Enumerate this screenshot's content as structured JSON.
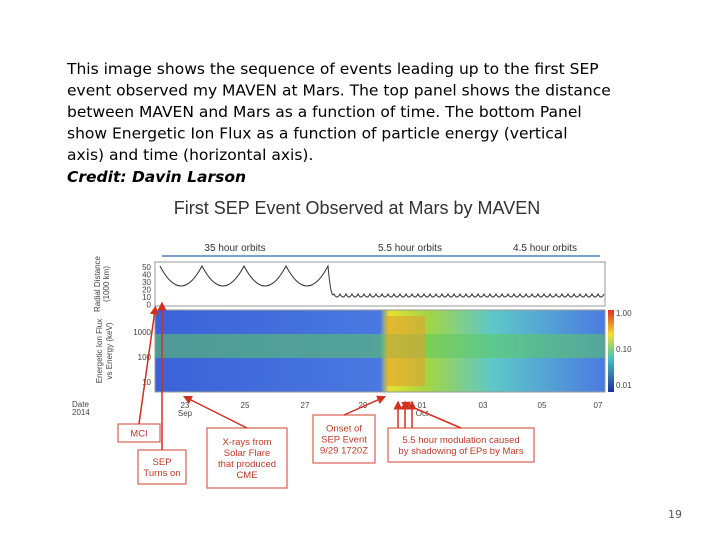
{
  "body": {
    "lines": [
      "This image shows the sequence of events leading up to the first SEP",
      "event observed my MAVEN at Mars. The top panel shows the distance",
      "between MAVEN and Mars as a function of time.  The bottom Panel",
      "show Energetic Ion Flux as a function of particle energy (vertical",
      "axis) and time (horizontal axis)."
    ],
    "credit": "Credit: Davin Larson"
  },
  "figure": {
    "title": "First SEP Event Observed at Mars by MAVEN",
    "orbit_labels": [
      "35 hour orbits",
      "5.5 hour orbits",
      "4.5 hour orbits"
    ],
    "top_panel": {
      "y_label": [
        "Radial Distance",
        "(1000 km)"
      ],
      "yticks": [
        "50",
        "40",
        "30",
        "20",
        "10",
        "0"
      ]
    },
    "bottom_panel": {
      "y_label": [
        "Energetic Ion Flux",
        "vs Energy (keV)"
      ],
      "yticks": [
        "1000",
        "100",
        "10"
      ]
    },
    "colorbar_ticks": [
      "1.00",
      "0.10",
      "0.01"
    ],
    "date_label": [
      "Date",
      "2014"
    ],
    "xticks": [
      {
        "label": "23",
        "sub": "Sep"
      },
      {
        "label": "25"
      },
      {
        "label": "27"
      },
      {
        "label": "29"
      },
      {
        "label": "01",
        "sub": "Oct"
      },
      {
        "label": "03"
      },
      {
        "label": "05"
      },
      {
        "label": "07"
      }
    ],
    "annotations": [
      [
        "MCI"
      ],
      [
        "SEP",
        "Turns on"
      ],
      [
        "X-rays from",
        "Solar Flare",
        "that produced",
        "CME"
      ],
      [
        "Onset of",
        "SEP Event",
        "9/29 1720Z"
      ],
      [
        "5.5 hour modulation caused",
        "by shadowing of EPs by Mars"
      ]
    ]
  },
  "page_number": "19"
}
